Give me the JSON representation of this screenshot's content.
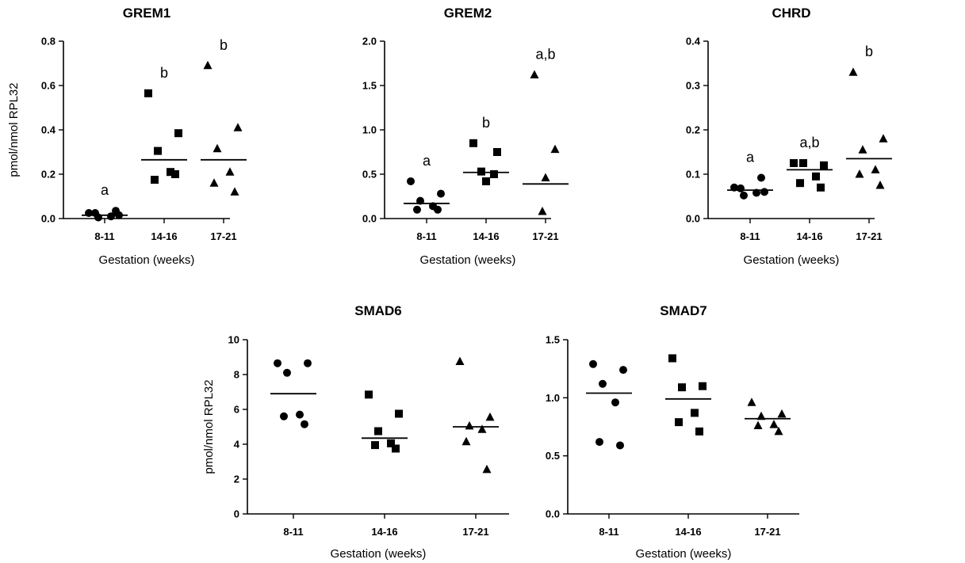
{
  "chart_data": [
    {
      "type": "scatter",
      "title": "GREM1",
      "xlabel": "Gestation (weeks)",
      "ylabel": "pmol/nmol RPL32",
      "ylim": [
        0,
        0.8
      ],
      "yticks": [
        "0.0",
        "0.2",
        "0.4",
        "0.6",
        "0.8"
      ],
      "categories": [
        "8-11",
        "14-16",
        "17-21"
      ],
      "markers": [
        "circle",
        "square",
        "triangle"
      ],
      "points": [
        [
          0.025,
          0.015,
          0.005,
          0.01,
          0.025,
          0.035
        ],
        [
          0.565,
          0.385,
          0.305,
          0.21,
          0.175,
          0.2
        ],
        [
          0.69,
          0.41,
          0.315,
          0.21,
          0.16,
          0.12
        ]
      ],
      "means": [
        0.015,
        0.265,
        0.265
      ],
      "sig_labels": [
        "a",
        "b",
        "b"
      ]
    },
    {
      "type": "scatter",
      "title": "GREM2",
      "xlabel": "Gestation (weeks)",
      "ylabel": "",
      "ylim": [
        0,
        2.0
      ],
      "yticks": [
        "0.0",
        "0.5",
        "1.0",
        "1.5",
        "2.0"
      ],
      "categories": [
        "8-11",
        "14-16",
        "17-21"
      ],
      "markers": [
        "circle",
        "square",
        "triangle"
      ],
      "points": [
        [
          0.42,
          0.28,
          0.2,
          0.14,
          0.1,
          0.1
        ],
        [
          0.85,
          0.75,
          0.53,
          0.5,
          0.42
        ],
        [
          1.62,
          0.78,
          0.46,
          0.08
        ]
      ],
      "means": [
        0.17,
        0.52,
        0.39
      ],
      "sig_labels": [
        "a",
        "b",
        "a,b"
      ]
    },
    {
      "type": "scatter",
      "title": "CHRD",
      "xlabel": "Gestation (weeks)",
      "ylabel": "",
      "ylim": [
        0,
        0.4
      ],
      "yticks": [
        "0.0",
        "0.1",
        "0.2",
        "0.3",
        "0.4"
      ],
      "categories": [
        "8-11",
        "14-16",
        "17-21"
      ],
      "markers": [
        "circle",
        "square",
        "triangle"
      ],
      "points": [
        [
          0.07,
          0.06,
          0.052,
          0.058,
          0.068,
          0.092
        ],
        [
          0.125,
          0.12,
          0.125,
          0.095,
          0.08,
          0.07
        ],
        [
          0.33,
          0.18,
          0.155,
          0.11,
          0.1,
          0.075
        ]
      ],
      "means": [
        0.064,
        0.11,
        0.135
      ],
      "sig_labels": [
        "a",
        "a,b",
        "b"
      ]
    },
    {
      "type": "scatter",
      "title": "SMAD6",
      "xlabel": "Gestation (weeks)",
      "ylabel": "pmol/nmol RPL32",
      "ylim": [
        0,
        10
      ],
      "yticks": [
        "0",
        "2",
        "4",
        "6",
        "8",
        "10"
      ],
      "categories": [
        "8-11",
        "14-16",
        "17-21"
      ],
      "markers": [
        "circle",
        "square",
        "triangle"
      ],
      "points": [
        [
          8.65,
          8.65,
          8.1,
          5.7,
          5.6,
          5.15
        ],
        [
          6.85,
          5.75,
          4.75,
          4.05,
          3.95,
          3.75
        ],
        [
          8.75,
          5.55,
          5.05,
          4.85,
          4.15,
          2.55
        ]
      ],
      "means": [
        6.9,
        4.35,
        5.0
      ],
      "sig_labels": []
    },
    {
      "type": "scatter",
      "title": "SMAD7",
      "xlabel": "Gestation (weeks)",
      "ylabel": "",
      "ylim": [
        0,
        1.5
      ],
      "yticks": [
        "0.0",
        "0.5",
        "1.0",
        "1.5"
      ],
      "categories": [
        "8-11",
        "14-16",
        "17-21"
      ],
      "markers": [
        "circle",
        "square",
        "triangle"
      ],
      "points": [
        [
          1.29,
          1.24,
          1.12,
          0.96,
          0.62,
          0.59
        ],
        [
          1.34,
          1.1,
          1.09,
          0.87,
          0.79,
          0.71
        ],
        [
          0.96,
          0.86,
          0.84,
          0.77,
          0.76,
          0.71
        ]
      ],
      "means": [
        1.04,
        0.99,
        0.82
      ],
      "sig_labels": []
    }
  ]
}
